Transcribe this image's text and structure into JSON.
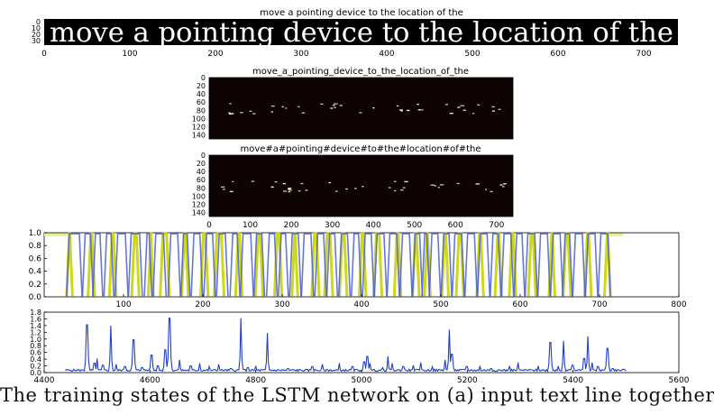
{
  "panel1": {
    "title": "move a pointing device to the location of the",
    "image_text": "move a pointing device to the location of the",
    "y_ticks": [
      "0",
      "10",
      "20",
      "30"
    ],
    "x_ticks": [
      "0",
      "100",
      "200",
      "300",
      "400",
      "500",
      "600",
      "700"
    ]
  },
  "panel2": {
    "title": "move_a_pointing_device_to_the_location_of_the",
    "y_ticks": [
      "0",
      "20",
      "40",
      "60",
      "80",
      "100",
      "120",
      "140"
    ]
  },
  "panel3": {
    "title": "move#a#pointing#device#to#the#location#of#the",
    "y_ticks": [
      "0",
      "20",
      "40",
      "60",
      "80",
      "100",
      "120",
      "140"
    ],
    "x_ticks": [
      "0",
      "100",
      "200",
      "300",
      "400",
      "500",
      "600",
      "700"
    ]
  },
  "chart_data": [
    {
      "type": "line",
      "xlim": [
        0,
        800
      ],
      "ylim": [
        0.0,
        1.0
      ],
      "x_ticks": [
        "100",
        "200",
        "300",
        "400",
        "500",
        "600",
        "700",
        "800"
      ],
      "y_ticks": [
        "0.0",
        "0.2",
        "0.4",
        "0.6",
        "0.8",
        "1.0"
      ],
      "series": [
        {
          "color": "#c8d400",
          "pulses": [
            [
              30,
              34
            ],
            [
              57,
              62
            ],
            [
              84,
              89
            ],
            [
              112,
              118
            ],
            [
              133,
              136
            ],
            [
              148,
              156
            ],
            [
              175,
              180
            ],
            [
              199,
              205
            ],
            [
              216,
              225
            ],
            [
              243,
              248
            ],
            [
              268,
              274
            ],
            [
              292,
              298
            ],
            [
              314,
              318
            ],
            [
              339,
              345
            ],
            [
              355,
              362
            ],
            [
              374,
              380
            ],
            [
              399,
              404
            ],
            [
              417,
              424
            ],
            [
              443,
              448
            ],
            [
              466,
              471
            ],
            [
              481,
              485
            ],
            [
              503,
              508
            ],
            [
              521,
              527
            ],
            [
              547,
              552
            ],
            [
              570,
              575
            ],
            [
              588,
              593
            ],
            [
              612,
              618
            ],
            [
              638,
              642
            ],
            [
              656,
              662
            ],
            [
              683,
              688
            ],
            [
              708,
              712
            ]
          ]
        },
        {
          "color": "#4b5fd6",
          "pulses": [
            [
              30,
              46
            ],
            [
              50,
              60
            ],
            [
              63,
              72
            ],
            [
              77,
              86
            ],
            [
              91,
              104
            ],
            [
              108,
              122
            ],
            [
              128,
              134
            ],
            [
              139,
              152
            ],
            [
              158,
              170
            ],
            [
              174,
              182
            ],
            [
              187,
              198
            ],
            [
              203,
              214
            ],
            [
              219,
              230
            ],
            [
              236,
              245
            ],
            [
              249,
              262
            ],
            [
              266,
              276
            ],
            [
              282,
              292
            ],
            [
              297,
              306
            ],
            [
              311,
              322
            ],
            [
              326,
              338
            ],
            [
              343,
              354
            ],
            [
              358,
              368
            ],
            [
              373,
              384
            ],
            [
              389,
              398
            ],
            [
              403,
              414
            ],
            [
              418,
              430
            ],
            [
              434,
              446
            ],
            [
              450,
              462
            ],
            [
              466,
              475
            ],
            [
              478,
              484
            ],
            [
              487,
              498
            ],
            [
              502,
              512
            ],
            [
              516,
              528
            ],
            [
              532,
              544
            ],
            [
              548,
              560
            ],
            [
              564,
              574
            ],
            [
              578,
              590
            ],
            [
              594,
              604
            ],
            [
              608,
              620
            ],
            [
              624,
              636
            ],
            [
              640,
              652
            ],
            [
              655,
              664
            ],
            [
              668,
              680
            ],
            [
              684,
              696
            ],
            [
              700,
              712
            ]
          ]
        }
      ]
    },
    {
      "type": "line",
      "xlim": [
        4400,
        5600
      ],
      "ylim": [
        0.0,
        1.8
      ],
      "x_ticks": [
        "4400",
        "4600",
        "4800",
        "5000",
        "5200",
        "5400",
        "5600"
      ],
      "y_ticks": [
        "0.0",
        "0.2",
        "0.4",
        "0.6",
        "0.8",
        "1.0",
        "1.2",
        "1.4",
        "1.6",
        "1.8"
      ],
      "series": [
        {
          "color": "#1f3fc4",
          "x_range": [
            4440,
            5500
          ],
          "baseline": 0.04,
          "peaks": [
            [
              4481,
              1.42
            ],
            [
              4495,
              0.28
            ],
            [
              4500,
              0.42
            ],
            [
              4511,
              0.22
            ],
            [
              4526,
              1.4
            ],
            [
              4536,
              0.25
            ],
            [
              4553,
              0.18
            ],
            [
              4569,
              0.98
            ],
            [
              4585,
              0.15
            ],
            [
              4603,
              0.52
            ],
            [
              4615,
              0.2
            ],
            [
              4629,
              0.68
            ],
            [
              4637,
              1.62
            ],
            [
              4656,
              0.38
            ],
            [
              4677,
              0.2
            ],
            [
              4694,
              0.28
            ],
            [
              4712,
              0.18
            ],
            [
              4730,
              0.25
            ],
            [
              4753,
              0.12
            ],
            [
              4772,
              1.62
            ],
            [
              4785,
              0.15
            ],
            [
              4800,
              0.2
            ],
            [
              4822,
              1.18
            ],
            [
              4861,
              0.12
            ],
            [
              4907,
              0.18
            ],
            [
              4926,
              0.25
            ],
            [
              4958,
              0.28
            ],
            [
              4983,
              0.18
            ],
            [
              5005,
              0.32
            ],
            [
              5011,
              0.48
            ],
            [
              5016,
              0.28
            ],
            [
              5040,
              0.15
            ],
            [
              5050,
              0.48
            ],
            [
              5058,
              0.28
            ],
            [
              5079,
              0.18
            ],
            [
              5098,
              0.22
            ],
            [
              5112,
              0.3
            ],
            [
              5134,
              0.18
            ],
            [
              5158,
              0.38
            ],
            [
              5166,
              1.28
            ],
            [
              5171,
              0.55
            ],
            [
              5199,
              0.18
            ],
            [
              5224,
              0.2
            ],
            [
              5245,
              0.12
            ],
            [
              5280,
              0.2
            ],
            [
              5296,
              0.3
            ],
            [
              5334,
              0.2
            ],
            [
              5357,
              0.9
            ],
            [
              5372,
              0.2
            ],
            [
              5382,
              0.95
            ],
            [
              5399,
              0.22
            ],
            [
              5421,
              0.42
            ],
            [
              5428,
              1.08
            ],
            [
              5436,
              0.3
            ],
            [
              5447,
              0.18
            ],
            [
              5465,
              0.72
            ],
            [
              5475,
              0.12
            ],
            [
              5495,
              0.1
            ]
          ]
        }
      ]
    }
  ],
  "caption": {
    "text": "The training states of the LSTM network on (a) input text line together with"
  }
}
